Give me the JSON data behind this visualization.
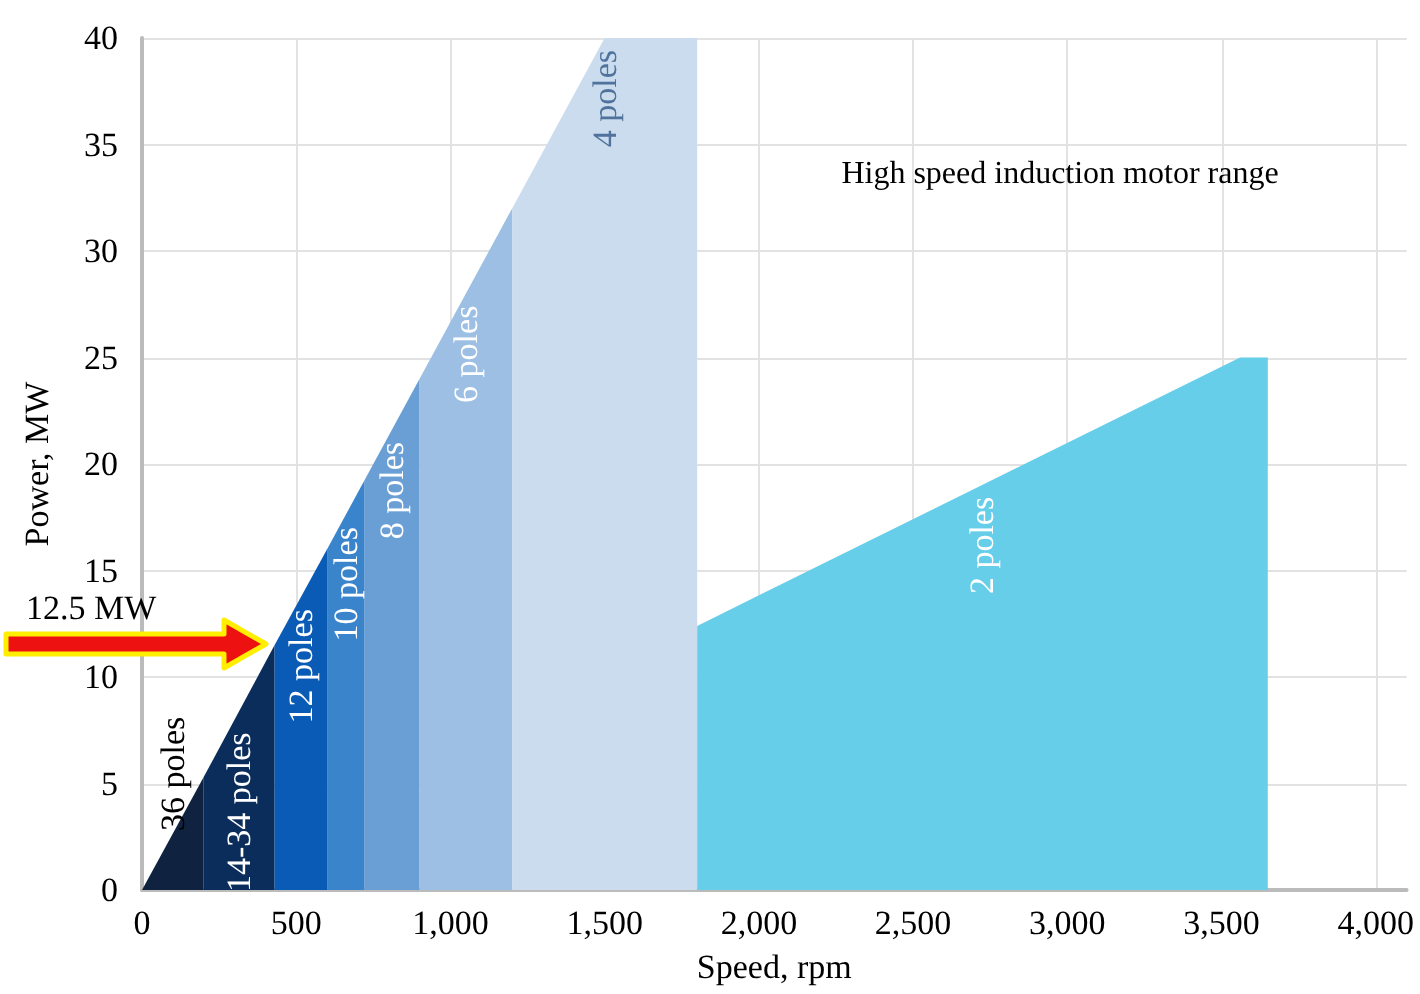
{
  "chart_data": {
    "type": "area",
    "xlabel": "Speed, rpm",
    "ylabel": "Power, MW",
    "annotations": [
      "High speed induction motor range",
      "12.5 MW"
    ],
    "series": [
      {
        "name": "36 poles",
        "color": "#0f2340",
        "x": [
          0,
          200
        ],
        "values": [
          0,
          5.3
        ]
      },
      {
        "name": "14-34 poles",
        "color": "#0b2d5c",
        "x": [
          200,
          430
        ],
        "values": [
          5.3,
          11.5
        ]
      },
      {
        "name": "12 poles",
        "color": "#0a5bb5",
        "x": [
          430,
          600
        ],
        "values": [
          11.5,
          16
        ]
      },
      {
        "name": "10 poles",
        "color": "#3a84cc",
        "x": [
          600,
          720
        ],
        "values": [
          16,
          19.2
        ]
      },
      {
        "name": "8 poles",
        "color": "#6a9fd6",
        "x": [
          720,
          900
        ],
        "values": [
          19.2,
          24
        ]
      },
      {
        "name": "6 poles",
        "color": "#9cbfe3",
        "x": [
          900,
          1200
        ],
        "values": [
          24,
          32
        ]
      },
      {
        "name": "4 poles",
        "color": "#cbdcee",
        "x": [
          1200,
          1500,
          1800
        ],
        "values": [
          32,
          40,
          40
        ]
      },
      {
        "name": "2 poles",
        "color": "#66cee9",
        "x": [
          1800,
          3560,
          3650
        ],
        "values": [
          12.4,
          25,
          25
        ]
      }
    ],
    "xlim": [
      0,
      4100
    ],
    "ylim": [
      0,
      40
    ],
    "xticks": [
      0,
      500,
      {
        "value": 1000,
        "label": "1,000"
      },
      {
        "value": 1500,
        "label": "1,500"
      },
      {
        "value": 2000,
        "label": "2,000"
      },
      {
        "value": 2500,
        "label": "2,500"
      },
      {
        "value": 3000,
        "label": "3,000"
      },
      {
        "value": 3500,
        "label": "3,500"
      },
      {
        "value": 4000,
        "label": "4,000"
      }
    ],
    "yticks": [
      0,
      5,
      10,
      15,
      20,
      25,
      30,
      35,
      40
    ],
    "grid": true,
    "legend": false
  }
}
